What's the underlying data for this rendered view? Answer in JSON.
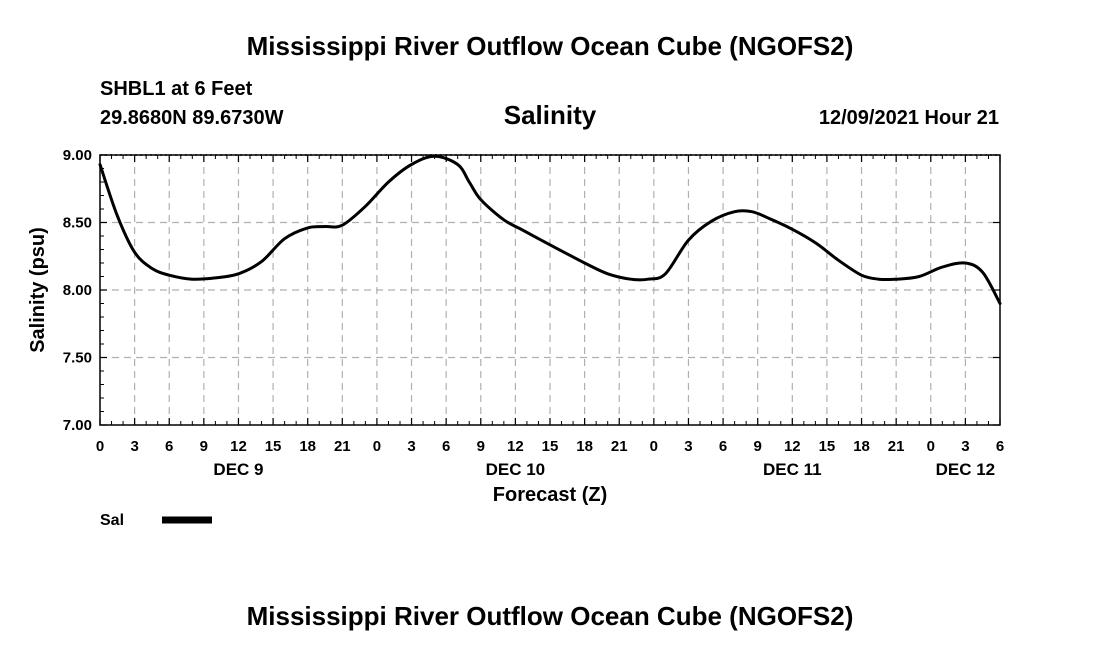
{
  "page": {
    "title": "Mississippi River Outflow Ocean Cube (NGOFS2)",
    "footer_title": "Mississippi River Outflow Ocean Cube (NGOFS2)"
  },
  "station": {
    "name": "SHBL1 at 6 Feet",
    "coords": "29.8680N  89.6730W",
    "datetime": "12/09/2021 Hour 21"
  },
  "legend": {
    "label": "Sal"
  },
  "colors": {
    "line": "#000000",
    "grid": "#b0b0b0"
  },
  "chart_data": {
    "type": "line",
    "title": "Salinity",
    "xlabel": "Forecast (Z)",
    "ylabel": "Salinity (psu)",
    "xlim": [
      0,
      78
    ],
    "ylim": [
      7.0,
      9.0
    ],
    "yticks": [
      "7.00",
      "7.50",
      "8.00",
      "8.50",
      "9.00"
    ],
    "xtick_labels": [
      "0",
      "3",
      "6",
      "9",
      "12",
      "15",
      "18",
      "21",
      "0",
      "3",
      "6",
      "9",
      "12",
      "15",
      "18",
      "21",
      "0",
      "3",
      "6",
      "9",
      "12",
      "15",
      "18",
      "21",
      "0",
      "3",
      "6"
    ],
    "day_labels": [
      {
        "text": "DEC 9",
        "hour": 12
      },
      {
        "text": "DEC 10",
        "hour": 36
      },
      {
        "text": "DEC 11",
        "hour": 60
      },
      {
        "text": "DEC 12",
        "hour": 75
      }
    ],
    "series": [
      {
        "name": "Sal",
        "x": [
          0,
          1.5,
          3,
          4.5,
          6,
          8,
          10,
          12,
          14,
          16,
          18,
          19.5,
          21,
          23,
          25,
          27,
          29,
          31,
          32,
          33,
          35,
          36.5,
          38,
          40,
          42,
          44,
          46,
          47.5,
          49,
          51,
          53,
          55,
          56.5,
          58,
          60,
          62,
          64,
          66,
          67.5,
          69,
          71,
          73,
          75,
          76.5,
          78
        ],
        "values": [
          8.93,
          8.55,
          8.28,
          8.16,
          8.11,
          8.08,
          8.09,
          8.12,
          8.21,
          8.38,
          8.46,
          8.47,
          8.48,
          8.62,
          8.8,
          8.93,
          8.99,
          8.93,
          8.8,
          8.67,
          8.52,
          8.45,
          8.38,
          8.29,
          8.2,
          8.12,
          8.08,
          8.08,
          8.12,
          8.37,
          8.51,
          8.58,
          8.58,
          8.53,
          8.45,
          8.35,
          8.22,
          8.11,
          8.08,
          8.08,
          8.1,
          8.17,
          8.2,
          8.13,
          7.9
        ]
      }
    ]
  }
}
